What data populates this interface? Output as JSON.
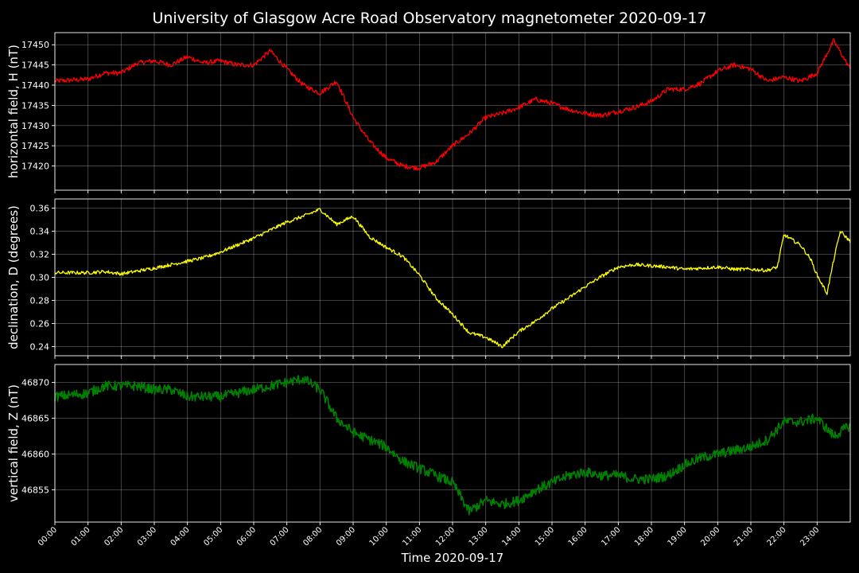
{
  "chart_data": {
    "title": "University of Glasgow Acre Road Observatory magnetometer 2020-09-17",
    "xlabel": "Time 2020-09-17",
    "x_range_hours": [
      0,
      24
    ],
    "x_ticks": [
      "00:00",
      "01:00",
      "02:00",
      "03:00",
      "04:00",
      "05:00",
      "06:00",
      "07:00",
      "08:00",
      "09:00",
      "10:00",
      "11:00",
      "12:00",
      "13:00",
      "14:00",
      "15:00",
      "16:00",
      "17:00",
      "18:00",
      "19:00",
      "20:00",
      "21:00",
      "22:00",
      "23:00"
    ],
    "grid": true,
    "background": "#000000",
    "panels": [
      {
        "type": "line",
        "ylabel": "horizontal field, H (nT)",
        "color": "#ff0000",
        "ylim": [
          17414,
          17453
        ],
        "y_ticks": [
          17420,
          17425,
          17430,
          17435,
          17440,
          17445,
          17450
        ],
        "y_tick_labels": [
          "17420",
          "17425",
          "17430",
          "17435",
          "17440",
          "17445",
          "17450"
        ],
        "noise": 0.6,
        "x": [
          0,
          1,
          1.5,
          2,
          2.5,
          3,
          3.5,
          4,
          4.5,
          5,
          5.5,
          6,
          6.5,
          7,
          7.5,
          8,
          8.5,
          9,
          9.5,
          10,
          10.5,
          11,
          11.5,
          12,
          12.5,
          13,
          13.5,
          14,
          14.5,
          15,
          15.5,
          16,
          16.5,
          17,
          17.5,
          18,
          18.5,
          19,
          19.5,
          20,
          20.5,
          21,
          21.5,
          22,
          22.5,
          23,
          23.5,
          24
        ],
        "y": [
          17441,
          17441.5,
          17443,
          17443,
          17445.5,
          17446,
          17445,
          17447,
          17445.5,
          17446,
          17445,
          17445,
          17448.5,
          17444,
          17440,
          17438,
          17441,
          17432,
          17426,
          17422,
          17420,
          17419.5,
          17421,
          17425,
          17428,
          17432,
          17433,
          17434.5,
          17436.5,
          17435.5,
          17434,
          17433,
          17432.5,
          17433.5,
          17434.5,
          17436,
          17439,
          17439,
          17440.5,
          17443.5,
          17445,
          17444,
          17441,
          17442,
          17441,
          17443,
          17451,
          17444
        ]
      },
      {
        "type": "line",
        "ylabel": "declination, D (degrees)",
        "color": "#ffff00",
        "ylim": [
          0.232,
          0.368
        ],
        "y_ticks": [
          0.24,
          0.26,
          0.28,
          0.3,
          0.32,
          0.34,
          0.36
        ],
        "y_tick_labels": [
          "0.24",
          "0.26",
          "0.28",
          "0.30",
          "0.32",
          "0.34",
          "0.36"
        ],
        "noise": 0.0015,
        "x": [
          0,
          1,
          1.5,
          2,
          3,
          4,
          4.5,
          5,
          5.5,
          6,
          6.5,
          7,
          7.5,
          8,
          8.5,
          9,
          9.5,
          10,
          10.5,
          11,
          11.5,
          12,
          12.5,
          13,
          13.5,
          14,
          14.5,
          15,
          15.5,
          16,
          16.5,
          17,
          17.5,
          18,
          18.5,
          19,
          19.5,
          20,
          20.5,
          21,
          21.5,
          21.8,
          22,
          22.5,
          22.8,
          23,
          23.3,
          23.5,
          23.7,
          24
        ],
        "y": [
          0.304,
          0.304,
          0.305,
          0.303,
          0.308,
          0.314,
          0.317,
          0.322,
          0.328,
          0.334,
          0.341,
          0.348,
          0.353,
          0.359,
          0.346,
          0.353,
          0.335,
          0.326,
          0.318,
          0.302,
          0.282,
          0.268,
          0.252,
          0.248,
          0.24,
          0.253,
          0.262,
          0.273,
          0.282,
          0.292,
          0.301,
          0.309,
          0.311,
          0.31,
          0.309,
          0.307,
          0.308,
          0.309,
          0.307,
          0.307,
          0.306,
          0.309,
          0.337,
          0.328,
          0.316,
          0.302,
          0.286,
          0.315,
          0.34,
          0.331
        ]
      },
      {
        "type": "line",
        "ylabel": "vertical field, Z (nT)",
        "color": "#008000",
        "ylim": [
          46850.5,
          46872.5
        ],
        "y_ticks": [
          46855,
          46860,
          46865,
          46870
        ],
        "y_tick_labels": [
          "46855",
          "46860",
          "46865",
          "46870"
        ],
        "noise": 0.7,
        "x": [
          0,
          1,
          1.5,
          2,
          2.5,
          3,
          3.5,
          4,
          4.5,
          5,
          5.5,
          6,
          6.5,
          7,
          7.5,
          8,
          8.5,
          9,
          9.5,
          10,
          10.5,
          11,
          11.5,
          12,
          12.5,
          13,
          13.5,
          14,
          14.5,
          15,
          15.5,
          16,
          16.5,
          17,
          17.5,
          18,
          18.5,
          19,
          19.5,
          20,
          20.5,
          21,
          21.5,
          22,
          22.5,
          23,
          23.5,
          24
        ],
        "y": [
          46868,
          46868.5,
          46869.5,
          46869.5,
          46869.5,
          46869,
          46869,
          46868,
          46868,
          46868,
          46868.5,
          46869,
          46869.5,
          46870,
          46870.5,
          46869,
          46865,
          46863,
          46862,
          46861,
          46859,
          46858,
          46857,
          46856,
          46852,
          46853.5,
          46853,
          46853.5,
          46855,
          46856,
          46857,
          46857.5,
          46857,
          46857,
          46856.5,
          46856.5,
          46857,
          46858.5,
          46859.5,
          46860,
          46860.5,
          46861,
          46862,
          46864.5,
          46864.5,
          46865,
          46862.5,
          46864
        ]
      }
    ]
  }
}
